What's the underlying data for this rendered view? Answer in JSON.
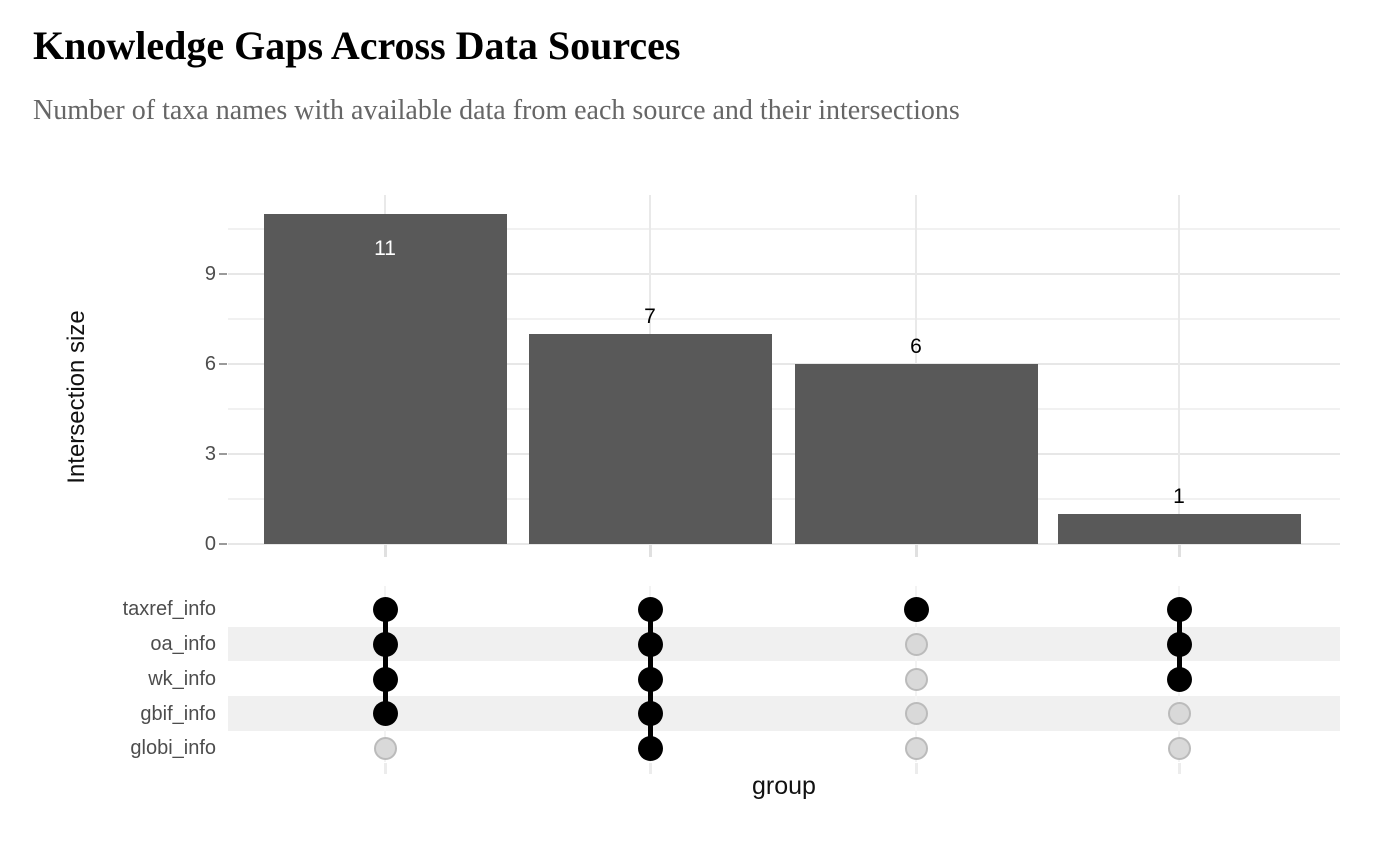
{
  "header": {
    "title": "Knowledge Gaps Across Data Sources",
    "subtitle": "Number of taxa names with available data from each source and their intersections"
  },
  "chart_data": {
    "type": "bar",
    "variant": "upset",
    "title": "Knowledge Gaps Across Data Sources",
    "subtitle": "Number of taxa names with available data from each source and their intersections",
    "xlabel": "group",
    "ylabel": "Intersection size",
    "yticks": [
      0,
      3,
      6,
      9
    ],
    "yticks_minor": [
      1.5,
      4.5,
      7.5,
      10.5
    ],
    "ylim": [
      0,
      11.6
    ],
    "grid": "horizontal major+minor light gray, vertical major at category centers, white background, no axis lines",
    "legend": "none",
    "sets": [
      "taxref_info",
      "oa_info",
      "wk_info",
      "gbif_info",
      "globi_info"
    ],
    "categories": [
      "taxref+oa+wk+gbif",
      "taxref+oa+wk+gbif+globi",
      "taxref only",
      "taxref+oa+wk"
    ],
    "values": [
      11,
      7,
      6,
      1
    ],
    "intersections": [
      {
        "value": 11,
        "label": "11",
        "members": [
          "taxref_info",
          "oa_info",
          "wk_info",
          "gbif_info"
        ]
      },
      {
        "value": 7,
        "label": "7",
        "members": [
          "taxref_info",
          "oa_info",
          "wk_info",
          "gbif_info",
          "globi_info"
        ]
      },
      {
        "value": 6,
        "label": "6",
        "members": [
          "taxref_info"
        ]
      },
      {
        "value": 1,
        "label": "1",
        "members": [
          "taxref_info",
          "oa_info",
          "wk_info"
        ]
      }
    ],
    "colors": {
      "bar": "#595959",
      "dot_filled": "#000000",
      "dot_empty_fill": "#d9d9d9",
      "dot_empty_border": "#bbbbbb",
      "row_stripe": "#f0f0f0",
      "label_inside_bar": "#ffffff",
      "label_above_bar": "#000000",
      "tick_label": "#4d4d4d"
    }
  }
}
